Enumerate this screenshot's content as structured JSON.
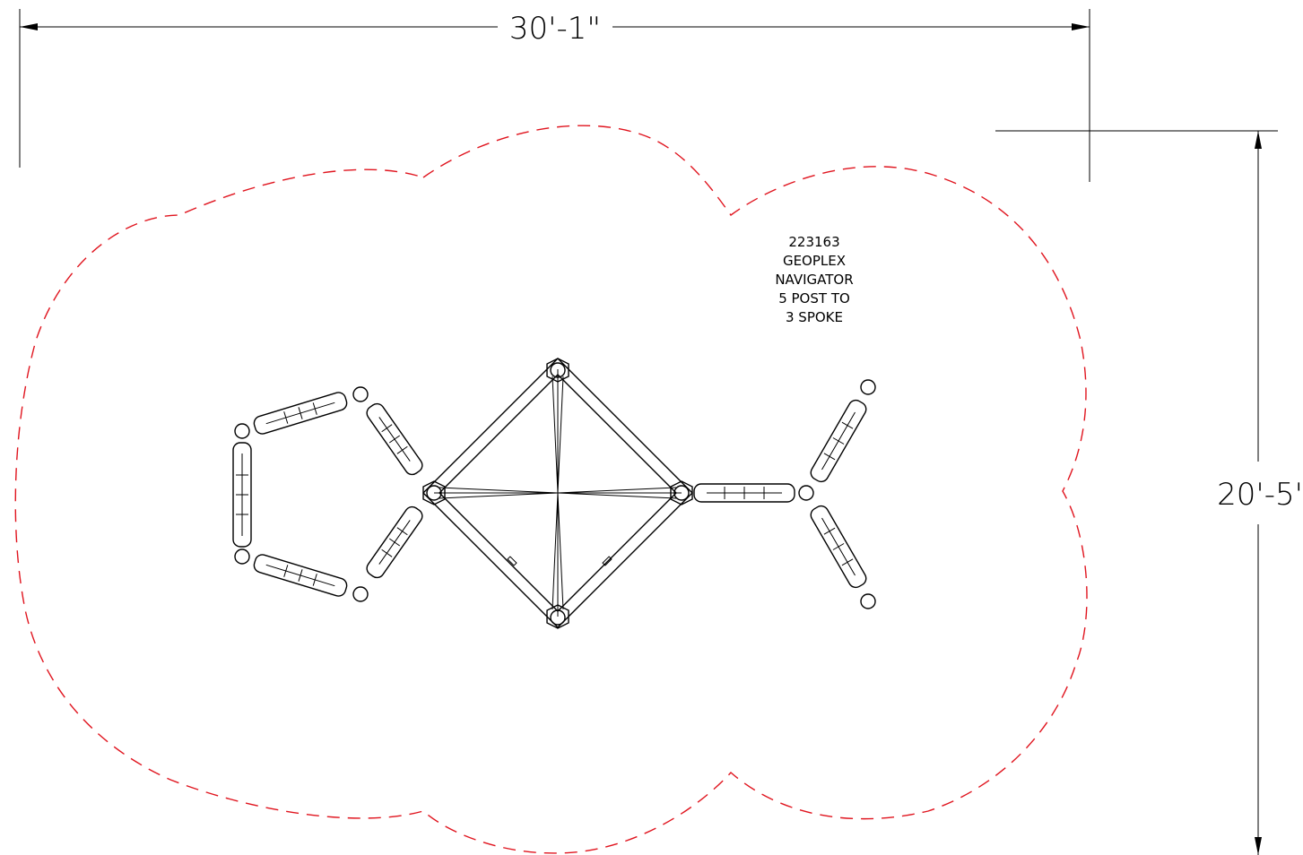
{
  "dimensions": {
    "width_label": "30'-1\"",
    "height_label": "20'-5'"
  },
  "product_label": {
    "lines": [
      "223163",
      "GEOPLEX",
      "NAVIGATOR",
      "5 POST TO",
      "3 SPOKE"
    ]
  },
  "colors": {
    "use_zone": "#e0141e",
    "linework": "#000000"
  }
}
